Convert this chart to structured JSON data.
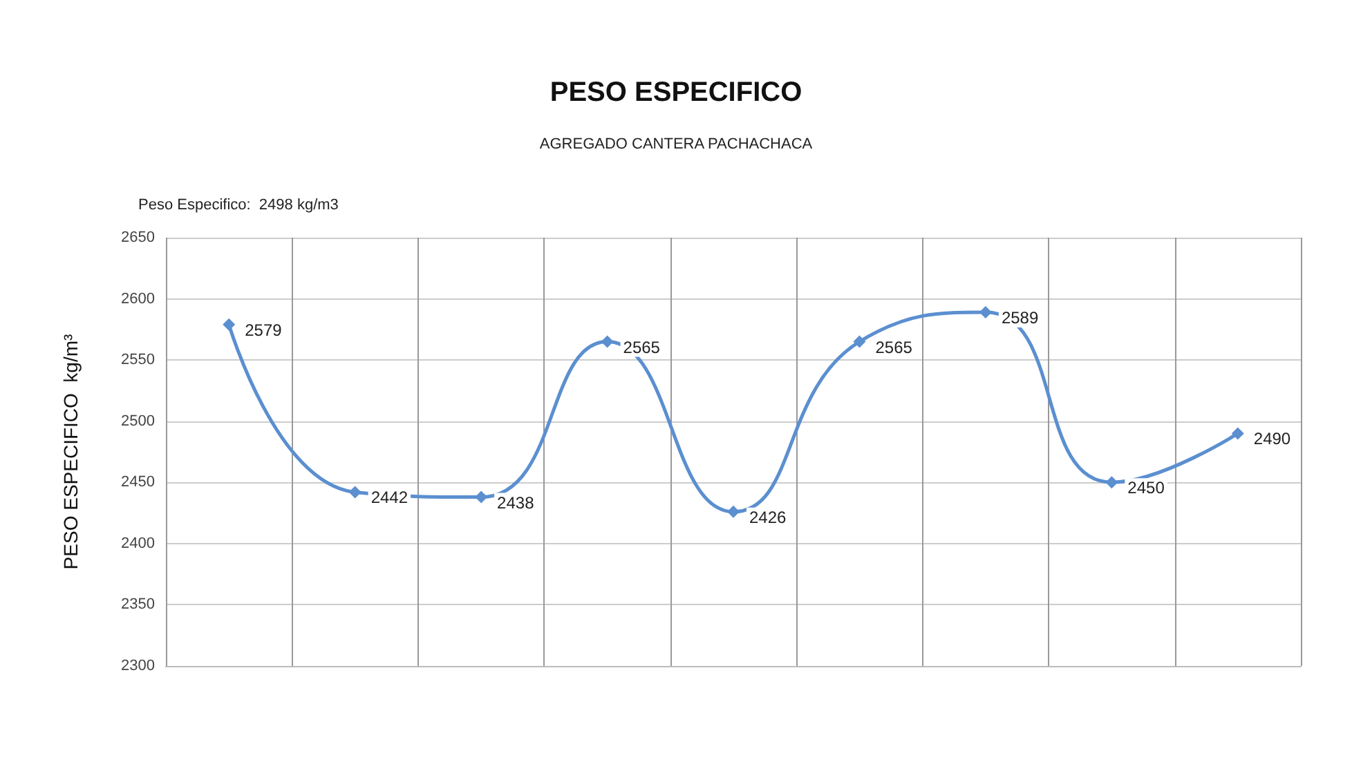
{
  "chart_data": {
    "type": "line",
    "title": "PESO ESPECIFICO",
    "subtitle": "AGREGADO CANTERA PACHACHACA",
    "ylabel": "PESO ESPECIFICO  kg/m³",
    "annotations": [
      "Peso Especifico:  2498 kg/m3"
    ],
    "categories": [
      null,
      null,
      null,
      null,
      null,
      null,
      null,
      null,
      null
    ],
    "series": [
      {
        "color": "#5b8fd0",
        "values": [
          2579,
          2442,
          2438,
          2565,
          2426,
          2565,
          2589,
          2450,
          2490
        ]
      }
    ],
    "ylim": [
      2300,
      2650
    ],
    "yticks": [
      2300,
      2350,
      2400,
      2450,
      2500,
      2550,
      2600,
      2650
    ],
    "grid": true,
    "marker": "diamond",
    "line_style": "solid",
    "data_labels": true,
    "tick_labels": "y"
  }
}
